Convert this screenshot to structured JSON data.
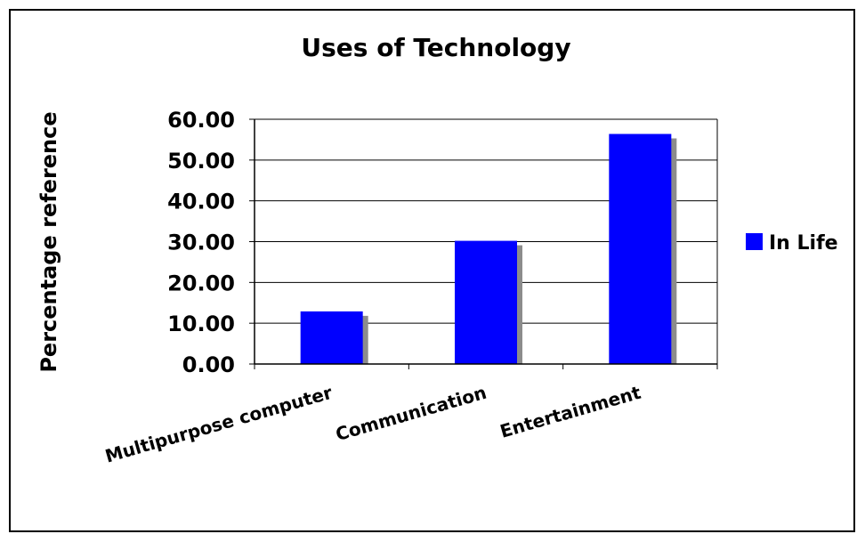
{
  "chart_data": {
    "type": "bar",
    "title": "Uses of Technology",
    "xlabel": "",
    "ylabel": "Percentage reference",
    "categories": [
      "Multipurpose computer",
      "Communication",
      "Entertainment"
    ],
    "series": [
      {
        "name": "In Life",
        "values": [
          12.9,
          30.2,
          56.4
        ],
        "color": "#0000ff"
      }
    ],
    "ylim": [
      0,
      60
    ],
    "yticks": [
      "0.00",
      "10.00",
      "20.00",
      "30.00",
      "40.00",
      "50.00",
      "60.00"
    ],
    "grid": true,
    "legend_position": "right"
  }
}
